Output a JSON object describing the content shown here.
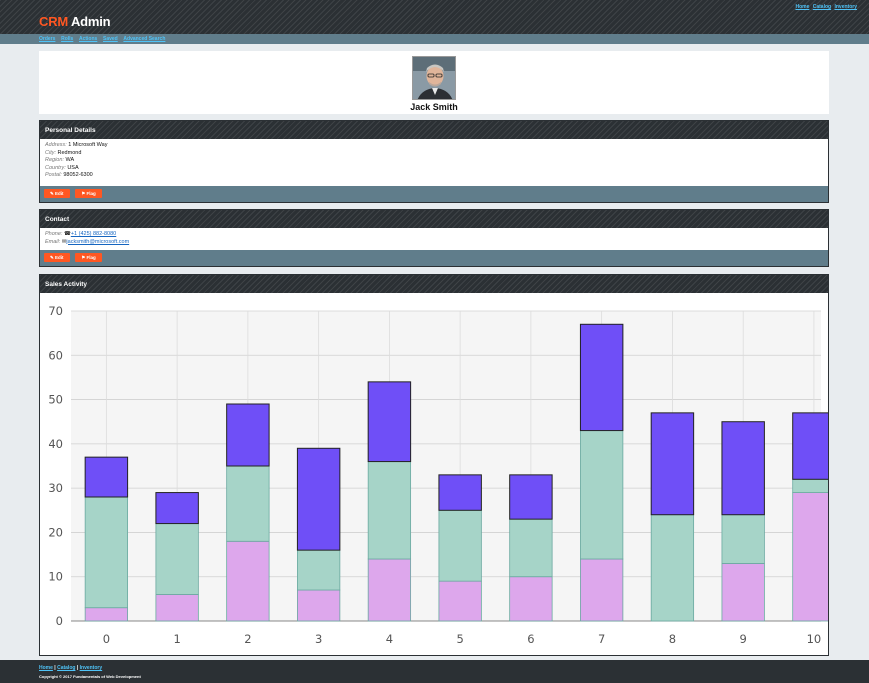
{
  "nav": {
    "top_links": [
      "Home",
      "Catalog",
      "Inventory"
    ],
    "brand_prefix": "CRM",
    "brand_suffix": " Admin",
    "sub_links": [
      "Orders",
      "Rolls",
      "Actions",
      "Saved",
      "Advanced Search"
    ]
  },
  "profile": {
    "name": "Jack Smith"
  },
  "personal": {
    "title": "Personal Details",
    "rows": [
      {
        "label": "Address:",
        "value": "1 Microsoft Way"
      },
      {
        "label": "City:",
        "value": "Redmond"
      },
      {
        "label": "Region:",
        "value": "WA"
      },
      {
        "label": "Country:",
        "value": "USA"
      },
      {
        "label": "Postal:",
        "value": "98052-6300"
      }
    ],
    "edit_label": "Edit",
    "flag_label": "Flag"
  },
  "contact": {
    "title": "Contact",
    "phone_label": "Phone:",
    "phone": "+1 (425) 882-8080",
    "email_label": "Email:",
    "email": "jacksmith@microsoft.com",
    "edit_label": "Edit",
    "flag_label": "Flag"
  },
  "sales": {
    "title": "Sales Activity"
  },
  "footer": {
    "links": [
      "Home",
      "Catalog",
      "Inventory"
    ],
    "copyright": "Copyright © 2017 Fundamentals of Web Development"
  },
  "chart_data": {
    "type": "bar",
    "stacked": true,
    "categories": [
      "0",
      "1",
      "2",
      "3",
      "4",
      "5",
      "6",
      "7",
      "8",
      "9",
      "10"
    ],
    "series": [
      {
        "color": "#dda7ec",
        "values": [
          3,
          6,
          18,
          7,
          14,
          9,
          10,
          14,
          0,
          13,
          29
        ]
      },
      {
        "color": "#a6d4c8",
        "values": [
          25,
          16,
          17,
          9,
          22,
          16,
          13,
          29,
          24,
          11,
          3
        ]
      },
      {
        "color": "#6f4ff7",
        "values": [
          9,
          7,
          14,
          23,
          18,
          8,
          10,
          24,
          23,
          21,
          15
        ]
      }
    ],
    "ylim": [
      0,
      70
    ],
    "yticks": [
      "0",
      "10",
      "20",
      "30",
      "40",
      "50",
      "60",
      "70"
    ],
    "grid": true
  }
}
